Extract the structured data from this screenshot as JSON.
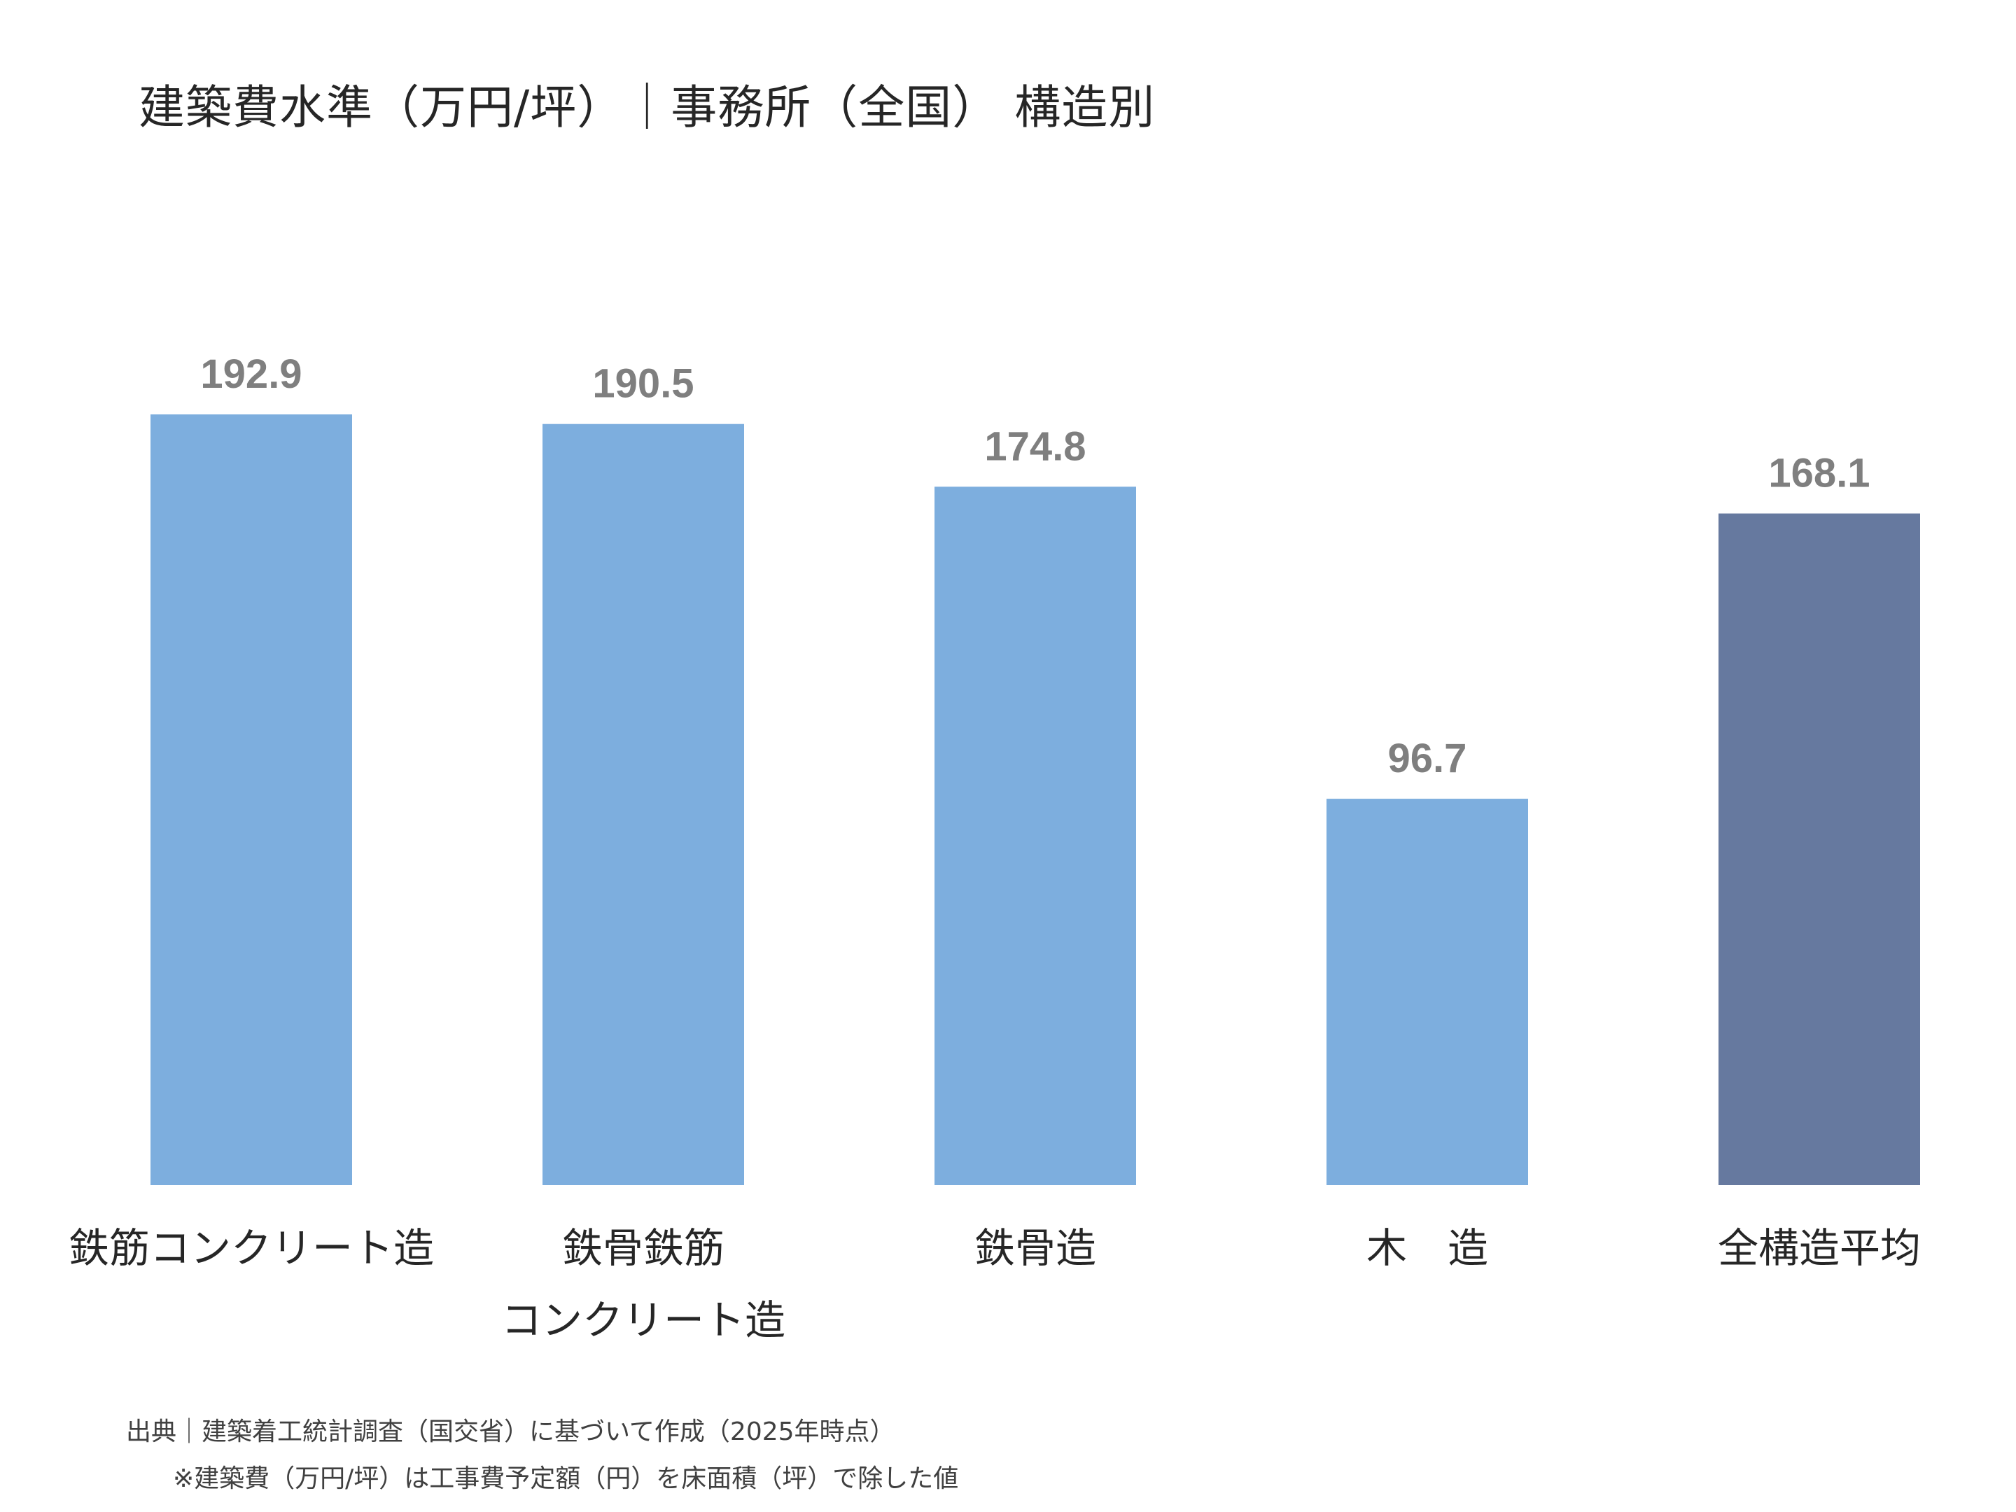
{
  "chart_data": {
    "type": "bar",
    "title": "建築費水準（万円/坪）｜事務所（全国） 構造別",
    "categories": [
      "鉄筋コンクリート造",
      "鉄骨鉄筋\nコンクリート造",
      "鉄骨造",
      "木　造",
      "全構造平均"
    ],
    "values": [
      192.9,
      190.5,
      174.8,
      96.7,
      168.1
    ],
    "value_labels": [
      "192.9",
      "190.5",
      "174.8",
      "96.7",
      "168.1"
    ],
    "colors": [
      "#7daede",
      "#7daede",
      "#7daede",
      "#7daede",
      "#66799f"
    ],
    "xlabel": "",
    "ylabel": "",
    "ylim": [
      0,
      200
    ],
    "grid": false,
    "axes_visible": false
  },
  "footnotes": {
    "source": "出典｜建築着工統計調査（国交省）に基づいて作成（2025年時点）",
    "note": "※建築費（万円/坪）は工事費予定額（円）を床面積（坪）で除した値"
  }
}
